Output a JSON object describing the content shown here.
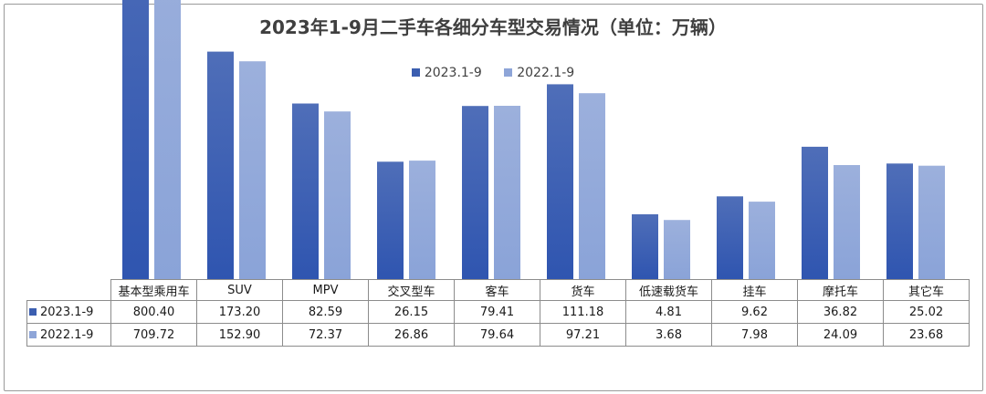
{
  "chart_data": {
    "type": "bar",
    "title": "2023年1-9月二手车各细分车型交易情况（单位：万辆）",
    "categories": [
      "基本型乘用车",
      "SUV",
      "MPV",
      "交叉型车",
      "客车",
      "货车",
      "低速载货车",
      "挂车",
      "摩托车",
      "其它车"
    ],
    "series": [
      {
        "name": "2023.1-9",
        "color": "#3b5eb0",
        "values": [
          800.4,
          173.2,
          82.59,
          26.15,
          79.41,
          111.18,
          4.81,
          9.62,
          36.82,
          25.02
        ],
        "labels": [
          "800.40",
          "173.20",
          "82.59",
          "26.15",
          "79.41",
          "111.18",
          "4.81",
          "9.62",
          "36.82",
          "25.02"
        ]
      },
      {
        "name": "2022.1-9",
        "color": "#8ea5d8",
        "values": [
          709.72,
          152.9,
          72.37,
          26.86,
          79.64,
          97.21,
          3.68,
          7.98,
          24.09,
          23.68
        ],
        "labels": [
          "709.72",
          "152.90",
          "72.37",
          "26.86",
          "79.64",
          "97.21",
          "3.68",
          "7.98",
          "24.09",
          "23.68"
        ]
      }
    ],
    "legend_position": "top-center",
    "grid": false,
    "axis": "hidden",
    "data_table": true
  }
}
